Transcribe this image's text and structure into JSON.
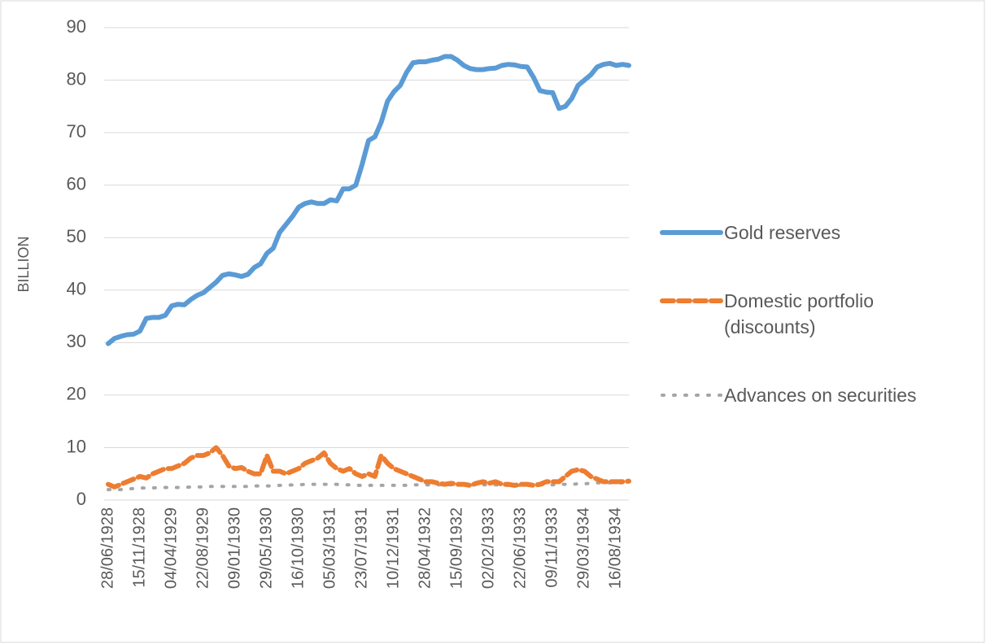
{
  "chart_data": {
    "type": "line",
    "ylabel": "BILLION",
    "categories": [
      "28/06/1928",
      null,
      null,
      null,
      null,
      "15/11/1928",
      null,
      null,
      null,
      null,
      "04/04/1929",
      null,
      null,
      null,
      null,
      "22/08/1929",
      null,
      null,
      null,
      null,
      "09/01/1930",
      null,
      null,
      null,
      null,
      "29/05/1930",
      null,
      null,
      null,
      null,
      "16/10/1930",
      null,
      null,
      null,
      null,
      "05/03/1931",
      null,
      null,
      null,
      null,
      "23/07/1931",
      null,
      null,
      null,
      null,
      "10/12/1931",
      null,
      null,
      null,
      null,
      "28/04/1932",
      null,
      null,
      null,
      null,
      "15/09/1932",
      null,
      null,
      null,
      null,
      "02/02/1933",
      null,
      null,
      null,
      null,
      "22/06/1933",
      null,
      null,
      null,
      null,
      "09/11/1933",
      null,
      null,
      null,
      null,
      "29/03/1934",
      null,
      null,
      null,
      null,
      "16/08/1934",
      null,
      null
    ],
    "series": [
      {
        "name": "Gold reserves",
        "color": "#5b9bd5",
        "style": "solid",
        "values": [
          29.8,
          30.8,
          31.2,
          31.5,
          31.6,
          32.2,
          34.6,
          34.8,
          34.8,
          35.2,
          37.0,
          37.3,
          37.2,
          38.2,
          39.0,
          39.5,
          40.5,
          41.5,
          42.8,
          43.1,
          42.9,
          42.6,
          43.0,
          44.3,
          45.0,
          47.0,
          48.0,
          51.0,
          52.5,
          54.0,
          55.8,
          56.5,
          56.8,
          56.5,
          56.5,
          57.2,
          57.0,
          59.3,
          59.3,
          60.0,
          64.0,
          68.5,
          69.2,
          72.0,
          76.0,
          77.8,
          79.0,
          81.5,
          83.3,
          83.5,
          83.5,
          83.8,
          84.0,
          84.5,
          84.5,
          83.8,
          82.8,
          82.2,
          82.0,
          82.0,
          82.2,
          82.3,
          82.8,
          83.0,
          82.9,
          82.6,
          82.5,
          80.5,
          78.0,
          77.7,
          77.6,
          74.6,
          75.0,
          76.5,
          79.0,
          80.0,
          81.0,
          82.5,
          83.0,
          83.2,
          82.8,
          83.0,
          82.8
        ]
      },
      {
        "name": "Domestic portfolio (discounts)",
        "color": "#ed7d31",
        "style": "dashed",
        "values": [
          3.0,
          2.5,
          3.0,
          3.5,
          4.0,
          4.5,
          4.2,
          5.0,
          5.5,
          6.0,
          6.0,
          6.5,
          7.0,
          8.0,
          8.5,
          8.5,
          9.0,
          10.0,
          8.5,
          6.5,
          6.0,
          6.2,
          5.5,
          5.0,
          5.0,
          8.5,
          5.5,
          5.5,
          5.0,
          5.5,
          6.0,
          7.0,
          7.5,
          8.0,
          9.0,
          7.0,
          6.0,
          5.5,
          6.0,
          5.0,
          4.5,
          5.0,
          4.5,
          8.5,
          7.0,
          6.0,
          5.5,
          5.0,
          4.5,
          4.0,
          3.5,
          3.5,
          3.2,
          3.0,
          3.2,
          3.0,
          3.0,
          2.8,
          3.2,
          3.5,
          3.2,
          3.5,
          3.0,
          3.0,
          2.8,
          3.0,
          3.0,
          2.8,
          3.0,
          3.5,
          3.5,
          3.5,
          4.5,
          5.5,
          5.8,
          5.5,
          4.5,
          4.0,
          3.5,
          3.5,
          3.5,
          3.5,
          3.6
        ]
      },
      {
        "name": "Advances on securities",
        "color": "#a5a5a5",
        "style": "dotted",
        "values": [
          2.0,
          2.0,
          2.0,
          2.1,
          2.2,
          2.3,
          2.3,
          2.3,
          2.4,
          2.4,
          2.4,
          2.4,
          2.4,
          2.5,
          2.5,
          2.5,
          2.6,
          2.6,
          2.6,
          2.6,
          2.6,
          2.6,
          2.6,
          2.7,
          2.7,
          2.7,
          2.7,
          2.8,
          2.8,
          2.9,
          2.9,
          3.0,
          3.0,
          3.0,
          3.0,
          3.0,
          3.0,
          2.9,
          2.9,
          2.8,
          2.8,
          2.8,
          2.8,
          2.8,
          2.8,
          2.8,
          2.8,
          2.8,
          2.9,
          2.9,
          2.9,
          2.9,
          2.9,
          2.9,
          2.9,
          2.9,
          2.9,
          2.9,
          2.9,
          2.9,
          2.9,
          2.9,
          2.8,
          2.8,
          2.8,
          2.8,
          2.8,
          2.8,
          2.9,
          2.9,
          2.9,
          3.0,
          3.0,
          3.0,
          3.1,
          3.1,
          3.2,
          3.3,
          3.3,
          3.3,
          3.3,
          3.3,
          3.3
        ]
      }
    ],
    "ylim": [
      0,
      90
    ],
    "yticks": [
      0,
      10,
      20,
      30,
      40,
      50,
      60,
      70,
      80,
      90
    ],
    "grid": true,
    "legend": "right"
  }
}
